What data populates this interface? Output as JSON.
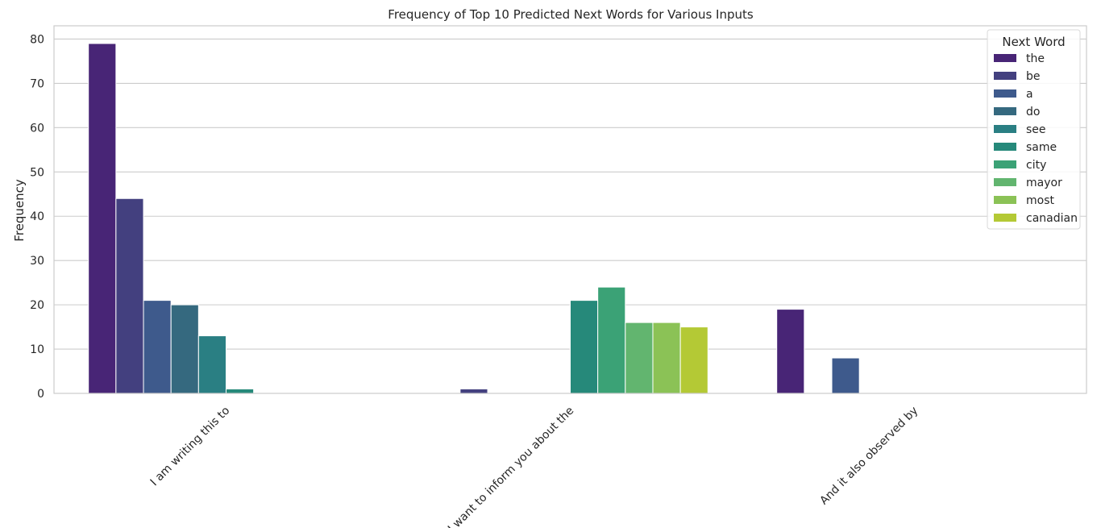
{
  "chart_data": {
    "type": "bar",
    "title": "Frequency of Top 10 Predicted Next Words for Various Inputs",
    "xlabel": "",
    "ylabel": "Frequency",
    "ylim": [
      0,
      83
    ],
    "yticks": [
      0,
      10,
      20,
      30,
      40,
      50,
      60,
      70,
      80
    ],
    "grid": true,
    "legend_title": "Next Word",
    "legend_position": "top-right",
    "categories": [
      "I am writing this to",
      "I want to inform you about the",
      "And it also observed by"
    ],
    "series": [
      {
        "name": "the",
        "color": "#482576",
        "values": [
          79,
          0,
          19
        ]
      },
      {
        "name": "be",
        "color": "#43407f",
        "values": [
          44,
          1,
          0
        ]
      },
      {
        "name": "a",
        "color": "#3e5a8c",
        "values": [
          21,
          0,
          8
        ]
      },
      {
        "name": "do",
        "color": "#35697f",
        "values": [
          20,
          0,
          0
        ]
      },
      {
        "name": "see",
        "color": "#2a7f83",
        "values": [
          13,
          0,
          0
        ]
      },
      {
        "name": "same",
        "color": "#26897a",
        "values": [
          1,
          21,
          0
        ]
      },
      {
        "name": "city",
        "color": "#3ba276",
        "values": [
          0,
          24,
          0
        ]
      },
      {
        "name": "mayor",
        "color": "#62b56f",
        "values": [
          0,
          16,
          0
        ]
      },
      {
        "name": "most",
        "color": "#8bc256",
        "values": [
          0,
          16,
          0
        ]
      },
      {
        "name": "canadian",
        "color": "#b4c935",
        "values": [
          0,
          15,
          0
        ]
      }
    ]
  }
}
